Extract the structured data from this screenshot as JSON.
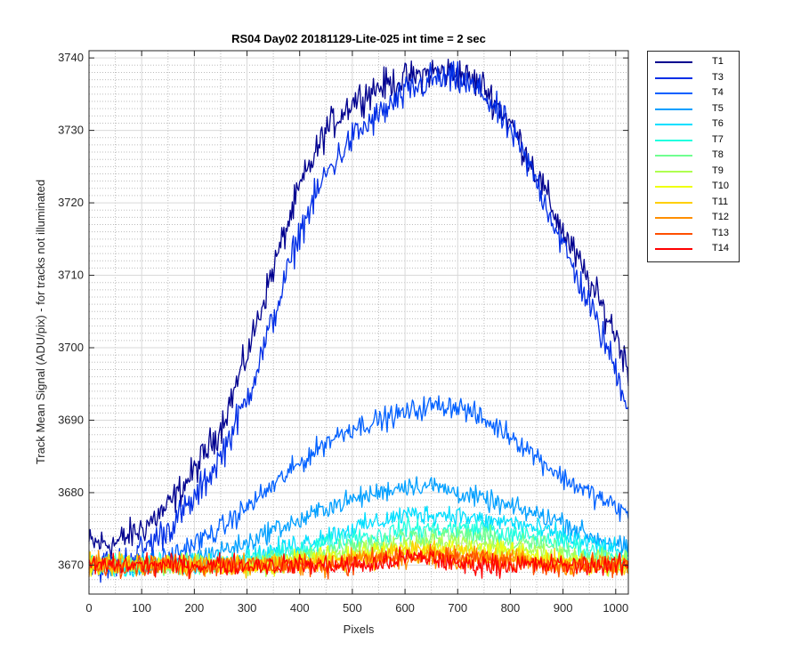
{
  "chart_data": {
    "type": "line",
    "title": "RS04 Day02 20181129-Lite-025 int time = 2 sec",
    "xlabel": "Pixels",
    "ylabel": "Track Mean Signal (ADU/pix) - for tracks not illuminated",
    "xlim": [
      0,
      1024
    ],
    "ylim": [
      3666,
      3741
    ],
    "xticks": [
      0,
      100,
      200,
      300,
      400,
      500,
      600,
      700,
      800,
      900,
      1000
    ],
    "yticks": [
      3670,
      3680,
      3690,
      3700,
      3710,
      3720,
      3730,
      3740
    ],
    "grid": true,
    "legend_position": "outside-right",
    "sample_x": [
      0,
      50,
      100,
      150,
      200,
      250,
      300,
      350,
      400,
      450,
      500,
      550,
      600,
      650,
      700,
      750,
      800,
      850,
      900,
      950,
      1000,
      1024
    ],
    "series": [
      {
        "name": "T1",
        "color": "#00008f",
        "noise": 1.6,
        "values": [
          3673,
          3673,
          3675,
          3678,
          3683,
          3689,
          3699,
          3711,
          3722,
          3730,
          3734,
          3736,
          3737,
          3738,
          3738,
          3736,
          3731,
          3724,
          3716,
          3709,
          3702,
          3697
        ]
      },
      {
        "name": "T3",
        "color": "#002ee6",
        "noise": 1.6,
        "values": [
          3670,
          3670,
          3672,
          3675,
          3679,
          3685,
          3693,
          3704,
          3716,
          3724,
          3729,
          3732,
          3735,
          3737,
          3737,
          3735,
          3730,
          3723,
          3714,
          3706,
          3697,
          3692
        ]
      },
      {
        "name": "T4",
        "color": "#0060ff",
        "noise": 1.1,
        "values": [
          3670,
          3670,
          3670,
          3671,
          3673,
          3675,
          3678,
          3681,
          3684,
          3687,
          3689,
          3690,
          3691,
          3692,
          3692,
          3690,
          3688,
          3685,
          3682,
          3680,
          3678,
          3677
        ]
      },
      {
        "name": "T5",
        "color": "#009fff",
        "noise": 1.0,
        "values": [
          3670,
          3670,
          3670,
          3670,
          3671,
          3672,
          3673,
          3675,
          3676,
          3678,
          3679,
          3680,
          3681,
          3681,
          3680,
          3679,
          3678,
          3677,
          3676,
          3674,
          3673,
          3672
        ]
      },
      {
        "name": "T6",
        "color": "#00dfff",
        "noise": 1.0,
        "values": [
          3670,
          3670,
          3670,
          3670,
          3670,
          3671,
          3671,
          3672,
          3673,
          3674,
          3675,
          3676,
          3677,
          3677,
          3677,
          3676,
          3676,
          3675,
          3674,
          3673,
          3672,
          3671
        ]
      },
      {
        "name": "T7",
        "color": "#20ffdf",
        "noise": 1.0,
        "values": [
          3670,
          3670,
          3670,
          3670,
          3670,
          3670,
          3671,
          3671,
          3672,
          3673,
          3674,
          3674,
          3675,
          3675,
          3675,
          3675,
          3674,
          3674,
          3673,
          3672,
          3671,
          3671
        ]
      },
      {
        "name": "T8",
        "color": "#70ff90",
        "noise": 1.0,
        "values": [
          3670,
          3670,
          3670,
          3670,
          3670,
          3670,
          3670,
          3671,
          3671,
          3672,
          3673,
          3673,
          3674,
          3674,
          3674,
          3674,
          3673,
          3673,
          3672,
          3671,
          3671,
          3670
        ]
      },
      {
        "name": "T9",
        "color": "#afff50",
        "noise": 1.0,
        "values": [
          3670,
          3670,
          3670,
          3670,
          3670,
          3670,
          3670,
          3670,
          3671,
          3671,
          3672,
          3672,
          3673,
          3673,
          3673,
          3673,
          3672,
          3672,
          3671,
          3671,
          3670,
          3670
        ]
      },
      {
        "name": "T10",
        "color": "#efff10",
        "noise": 1.0,
        "values": [
          3670,
          3670,
          3670,
          3670,
          3670,
          3670,
          3670,
          3670,
          3671,
          3671,
          3671,
          3672,
          3672,
          3672,
          3672,
          3672,
          3672,
          3671,
          3671,
          3670,
          3670,
          3670
        ]
      },
      {
        "name": "T11",
        "color": "#ffcf00",
        "noise": 1.0,
        "values": [
          3670,
          3670,
          3670,
          3670,
          3670,
          3670,
          3670,
          3670,
          3670,
          3671,
          3671,
          3671,
          3672,
          3672,
          3672,
          3671,
          3671,
          3671,
          3670,
          3670,
          3670,
          3670
        ]
      },
      {
        "name": "T12",
        "color": "#ff8f00",
        "noise": 1.0,
        "values": [
          3670,
          3670,
          3670,
          3670,
          3670,
          3670,
          3670,
          3670,
          3670,
          3670,
          3671,
          3671,
          3671,
          3671,
          3671,
          3671,
          3671,
          3670,
          3670,
          3670,
          3670,
          3670
        ]
      },
      {
        "name": "T13",
        "color": "#ff4f00",
        "noise": 1.0,
        "values": [
          3670,
          3670,
          3670,
          3670,
          3670,
          3670,
          3670,
          3670,
          3670,
          3670,
          3670,
          3671,
          3671,
          3671,
          3671,
          3671,
          3670,
          3670,
          3670,
          3670,
          3670,
          3670
        ]
      },
      {
        "name": "T14",
        "color": "#ff0000",
        "noise": 1.0,
        "values": [
          3670,
          3670,
          3670,
          3670,
          3670,
          3670,
          3670,
          3670,
          3670,
          3670,
          3670,
          3670,
          3671,
          3671,
          3670,
          3670,
          3670,
          3670,
          3670,
          3670,
          3670,
          3670
        ]
      }
    ]
  }
}
